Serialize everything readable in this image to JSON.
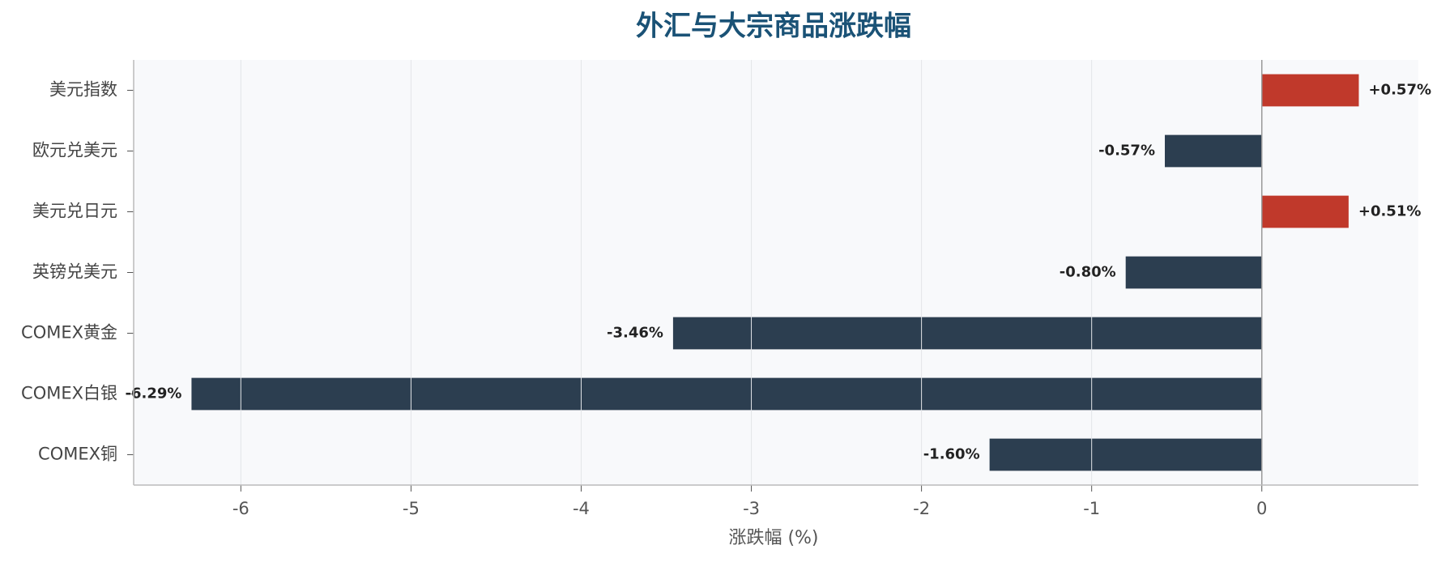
{
  "chart_data": {
    "type": "bar",
    "orientation": "horizontal",
    "title": "外汇与大宗商品涨跌幅",
    "categories": [
      "美元指数",
      "欧元兑美元",
      "美元兑日元",
      "英镑兑美元",
      "COMEX黄金",
      "COMEX白银",
      "COMEX铜"
    ],
    "values": [
      0.57,
      -0.57,
      0.51,
      -0.8,
      -3.46,
      -6.29,
      -1.6
    ],
    "value_labels": [
      "+0.57%",
      "-0.57%",
      "+0.51%",
      "-0.80%",
      "-3.46%",
      "-6.29%",
      "-1.60%"
    ],
    "positive_color": "#c0392b",
    "negative_color": "#2c3e50",
    "xlabel": "涨跌幅 (%)",
    "xlim": [
      -6.63,
      0.92
    ],
    "xticks": [
      -6,
      -5,
      -4,
      -3,
      -2,
      -1,
      0
    ],
    "grid": true
  }
}
